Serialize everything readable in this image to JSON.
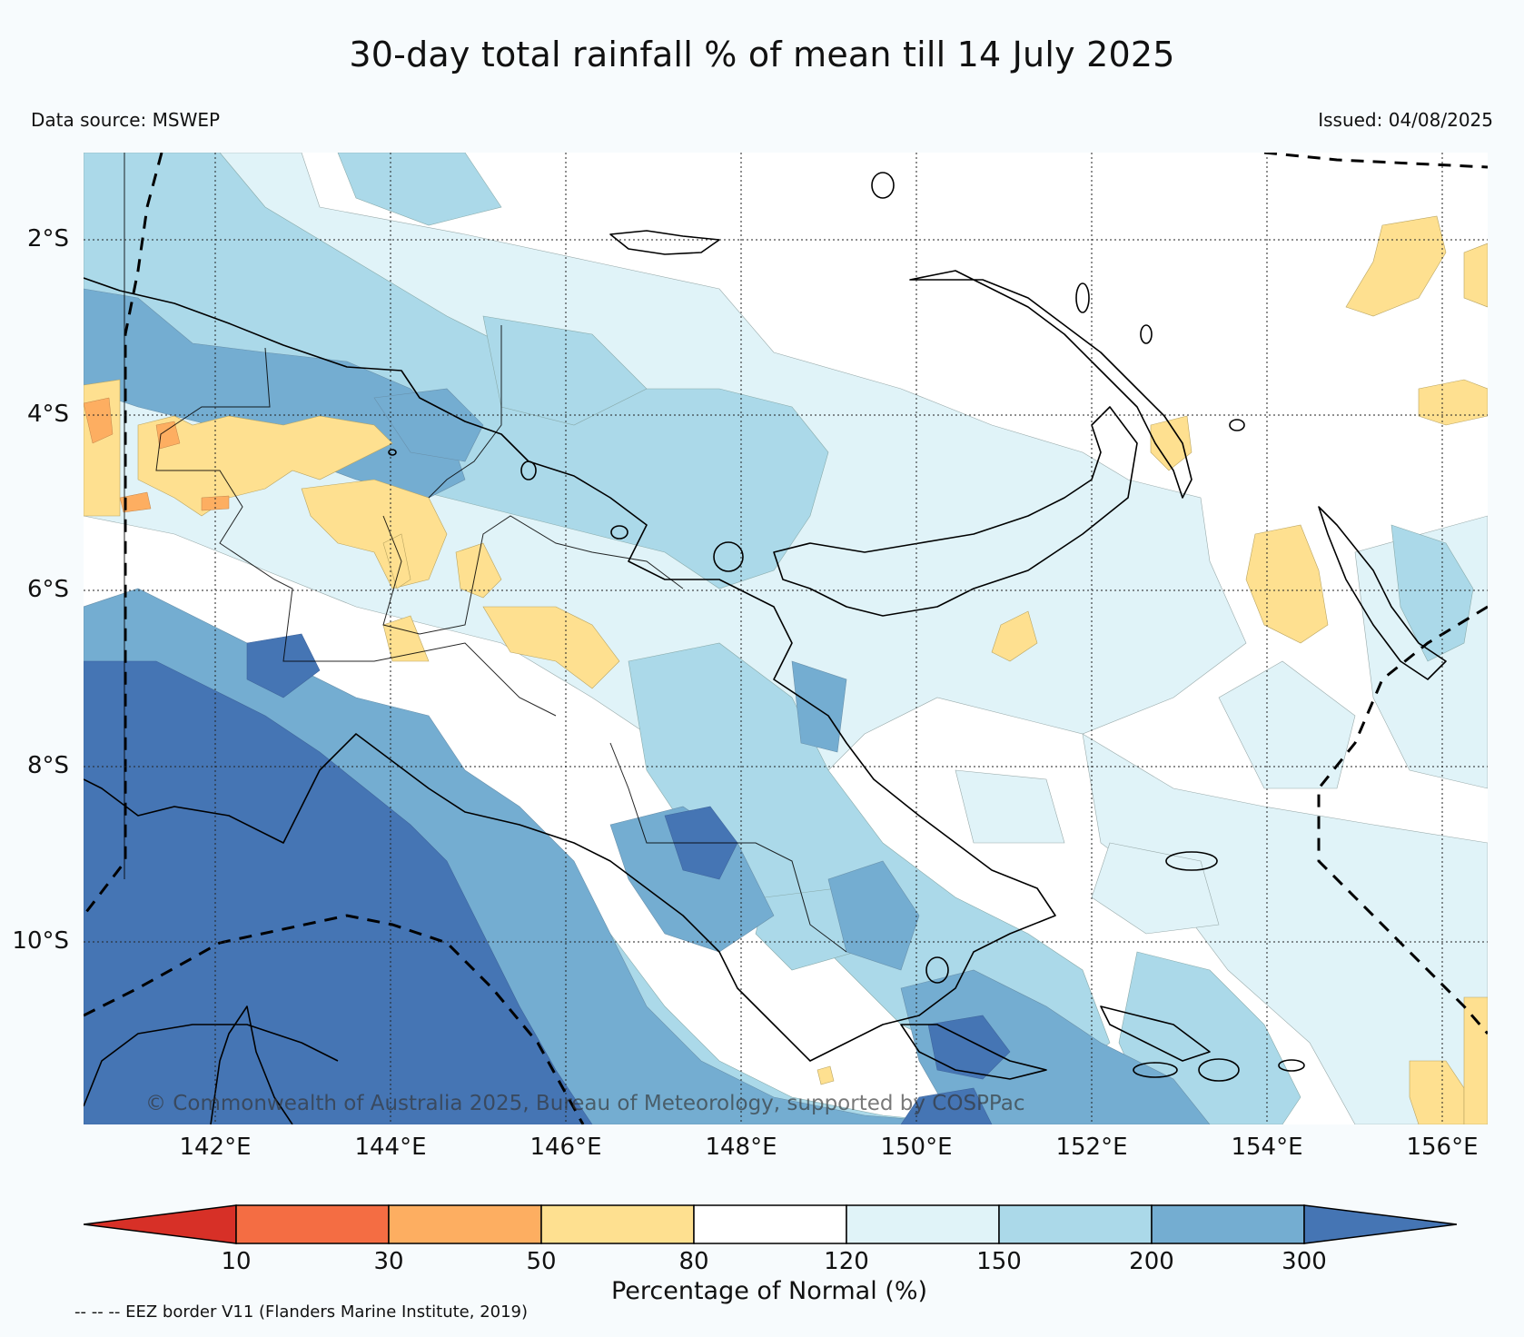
{
  "header": {
    "title": "30-day total rainfall % of mean till 14 July 2025",
    "data_source": "Data source: MSWEP",
    "issued": "Issued: 04/08/2025"
  },
  "map": {
    "latitude_labels": [
      "2°S",
      "4°S",
      "6°S",
      "8°S",
      "10°S"
    ],
    "longitude_labels": [
      "142°E",
      "144°E",
      "146°E",
      "148°E",
      "150°E",
      "152°E",
      "154°E",
      "156°E"
    ],
    "copyright": "© Commonwealth of Australia 2025, Bureau of Meteorology, supported by COSPPac"
  },
  "legend": {
    "ticks": [
      "10",
      "30",
      "50",
      "80",
      "120",
      "150",
      "200",
      "300"
    ],
    "label": "Percentage of Normal (%)",
    "colors": [
      "#d73027",
      "#f46d43",
      "#fdae61",
      "#fee090",
      "#ffffff",
      "#e0f3f8",
      "#abd9e9",
      "#74add1",
      "#4575b4"
    ]
  },
  "footer": {
    "eez_note": "-- -- -- EEZ border V11 (Flanders Marine Institute, 2019)"
  }
}
